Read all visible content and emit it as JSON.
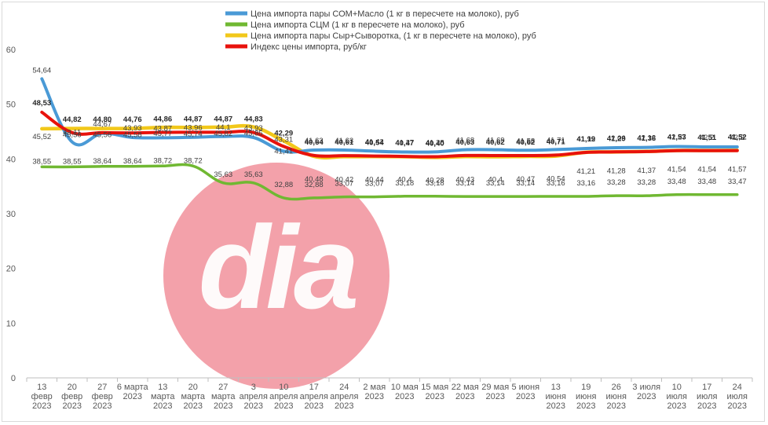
{
  "chart_data": {
    "type": "line",
    "ylim": [
      0,
      60
    ],
    "yticks": [
      0,
      10,
      20,
      30,
      40,
      50,
      60
    ],
    "grid": false,
    "legend_position": "top",
    "categories": [
      [
        "13",
        "февр",
        "2023"
      ],
      [
        "20",
        "февр",
        "2023"
      ],
      [
        "27",
        "февр",
        "2023"
      ],
      [
        "6 марта",
        "2023"
      ],
      [
        "13",
        "марта",
        "2023"
      ],
      [
        "20",
        "марта",
        "2023"
      ],
      [
        "27",
        "марта",
        "2023"
      ],
      [
        "3",
        "апреля",
        "2023"
      ],
      [
        "10",
        "апреля",
        "2023"
      ],
      [
        "17",
        "апреля",
        "2023"
      ],
      [
        "24",
        "апреля",
        "2023"
      ],
      [
        "2 мая",
        "2023"
      ],
      [
        "10 мая",
        "2023"
      ],
      [
        "15 мая",
        "2023"
      ],
      [
        "22 мая",
        "2023"
      ],
      [
        "29 мая",
        "2023"
      ],
      [
        "5 июня",
        "2023"
      ],
      [
        "13",
        "июня",
        "2023"
      ],
      [
        "19",
        "июня",
        "2023"
      ],
      [
        "26",
        "июня",
        "2023"
      ],
      [
        "3 июля",
        "2023"
      ],
      [
        "10",
        "июля",
        "2023"
      ],
      [
        "17",
        "июля",
        "2023"
      ],
      [
        "24",
        "июля",
        "2023"
      ]
    ],
    "series": [
      {
        "name": "Цена импорта пары СОМ+Масло  (1 кг в пересчете на молоко), руб",
        "color": "#4a9ad6",
        "values": [
          54.64,
          43.11,
          44.67,
          43.93,
          43.87,
          43.96,
          44.1,
          43.93,
          41.41,
          41.63,
          41.63,
          41.42,
          41.27,
          41.28,
          41.68,
          41.69,
          41.58,
          41.71,
          41.92,
          42.06,
          42.12,
          42.27,
          42.2,
          42.2
        ],
        "labels": [
          "54,64",
          "43,11",
          "44,67",
          "43,93",
          "43,87",
          "43,96",
          "44,1",
          "43,93",
          "41,41",
          "41,63",
          "41,63",
          "41,42",
          "41,27",
          "41,28",
          "41,68",
          "41,69",
          "41,58",
          "41,71",
          "41,92",
          "42,06",
          "42,12",
          "42,27",
          "42,2",
          "42,2"
        ]
      },
      {
        "name": "Цена импорта СЦМ (1 кг в пересчете на молоко), руб",
        "color": "#70b832",
        "values": [
          38.55,
          38.55,
          38.64,
          38.64,
          38.72,
          38.72,
          35.63,
          35.63,
          32.88,
          32.88,
          33.07,
          33.07,
          33.18,
          33.18,
          33.14,
          33.14,
          33.14,
          33.16,
          33.16,
          33.28,
          33.28,
          33.48,
          33.48,
          33.47
        ],
        "labels": [
          "38,55",
          "38,55",
          "38,64",
          "38,64",
          "38,72",
          "38,72",
          "35,63",
          "35,63",
          "32,88",
          "32,88",
          "33,07",
          "33,07",
          "33,18",
          "33,18",
          "33,14",
          "33,14",
          "33,14",
          "33,16",
          "33,16",
          "33,28",
          "33,28",
          "33,48",
          "33,48",
          "33,47"
        ]
      },
      {
        "name": "Цена импорта пары Сыр+Сыворотка, (1 кг в пересчете на молоко), руб",
        "color": "#f2c81a",
        "values": [
          45.52,
          45.56,
          45.56,
          45.58,
          45.77,
          45.74,
          45.82,
          45.85,
          43.31,
          40.48,
          40.42,
          40.44,
          40.4,
          40.28,
          40.43,
          40.4,
          40.47,
          40.54,
          41.21,
          41.28,
          41.37,
          41.54,
          41.54,
          41.57
        ],
        "labels": [
          "45,52",
          "45,56",
          "45,56",
          "45,58",
          "45,77",
          "45,74",
          "45,82",
          "45,85",
          "43,31",
          "40,48",
          "40,42",
          "40,44",
          "40,4",
          "40,28",
          "40,43",
          "40,4",
          "40,47",
          "40,54",
          "41,21",
          "41,28",
          "41,37",
          "41,54",
          "41,54",
          "41,57"
        ]
      },
      {
        "name": "Индекс цены импорта, руб/кг",
        "color": "#e8120c",
        "values": [
          48.53,
          44.82,
          44.8,
          44.76,
          44.86,
          44.87,
          44.87,
          44.83,
          42.29,
          40.64,
          40.61,
          40.54,
          40.47,
          40.4,
          40.63,
          40.62,
          40.62,
          40.71,
          41.19,
          41.29,
          41.36,
          41.53,
          41.51,
          41.52
        ],
        "labels": [
          "48,53",
          "44,82",
          "44,80",
          "44,76",
          "44,86",
          "44,87",
          "44,87",
          "44,83",
          "42,29",
          "40,64",
          "40,61",
          "40,54",
          "40,47",
          "40,40",
          "40,63",
          "40,62",
          "40,62",
          "40,71",
          "41,19",
          "41,29",
          "41,36",
          "41,53",
          "41,51",
          "41,52"
        ]
      }
    ]
  },
  "watermark": {
    "text": "dia",
    "color": "#f08a95"
  }
}
